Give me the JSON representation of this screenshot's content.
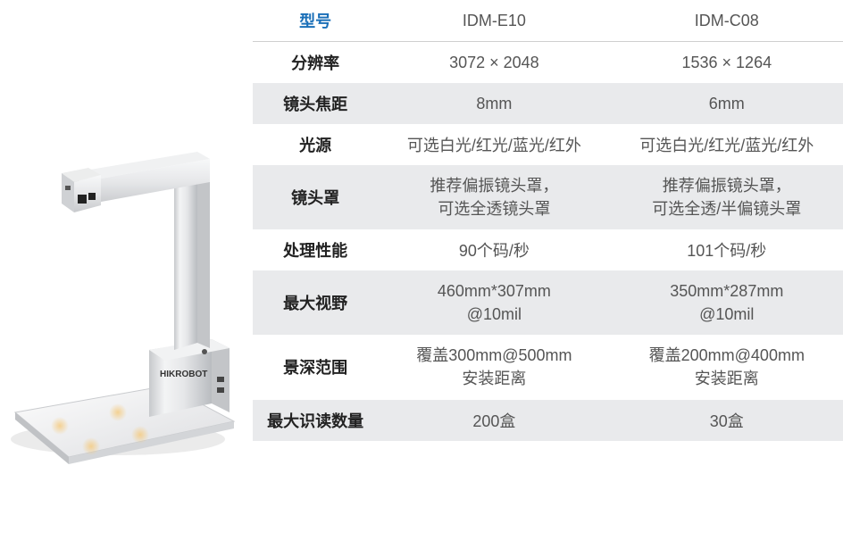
{
  "table": {
    "header_color": "#1a6fb8",
    "row_bg_even": "#e9eaec",
    "row_bg_odd": "#ffffff",
    "border_color": "#cfcfcf",
    "label_font_weight": "700",
    "fontsize": 18,
    "columns": {
      "label": "型号",
      "model_a": "IDM-E10",
      "model_b": "IDM-C08"
    },
    "rows": [
      {
        "label": "分辨率",
        "a": "3072 × 2048",
        "b": "1536 × 1264"
      },
      {
        "label": "镜头焦距",
        "a": "8mm",
        "b": "6mm"
      },
      {
        "label": "光源",
        "a": "可选白光/红光/蓝光/红外",
        "b": "可选白光/红光/蓝光/红外"
      },
      {
        "label": "镜头罩",
        "a": "推荐偏振镜头罩，\n可选全透镜头罩",
        "b": "推荐偏振镜头罩，\n可选全透/半偏镜头罩"
      },
      {
        "label": "处理性能",
        "a": "90个码/秒",
        "b": "101个码/秒"
      },
      {
        "label": "最大视野",
        "a": "460mm*307mm\n@10mil",
        "b": "350mm*287mm\n@10mil"
      },
      {
        "label": "景深范围",
        "a": "覆盖300mm@500mm\n安装距离",
        "b": "覆盖200mm@400mm\n安装距离"
      },
      {
        "label": "最大识读数量",
        "a": "200盒",
        "b": "30盒"
      }
    ]
  },
  "device": {
    "brand_text": "HIKROBOT",
    "body_color": "#e6e7e9",
    "body_highlight": "#f7f8f9",
    "body_shadow": "#b9bcc0",
    "plate_glow_color": "#f5c97a",
    "background_color": "#ffffff"
  }
}
